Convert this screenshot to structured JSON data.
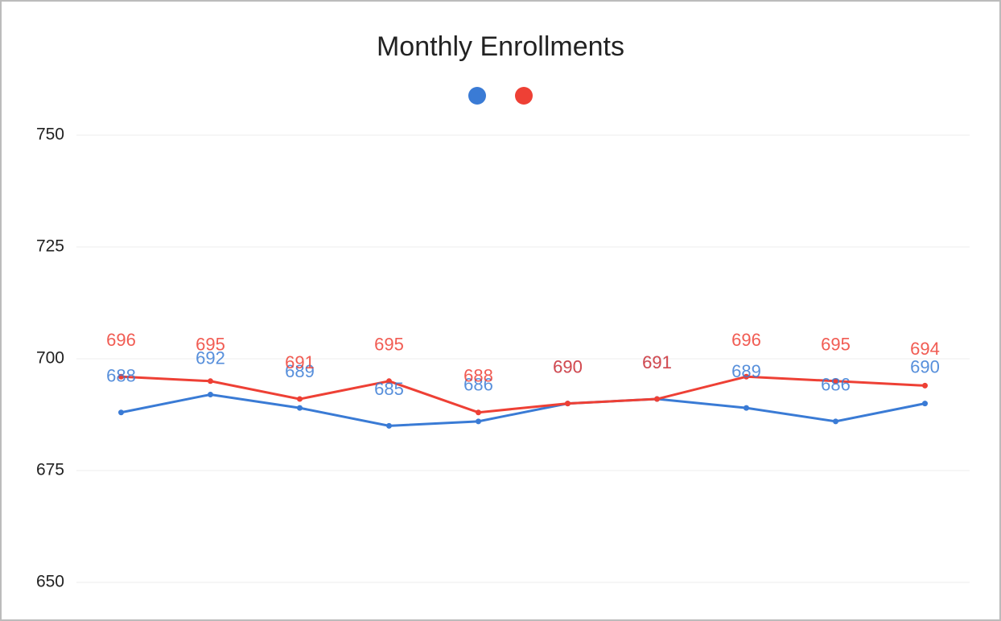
{
  "chart_data": {
    "type": "line",
    "title": "Monthly Enrollments",
    "categories": [
      null,
      null,
      null,
      null,
      null,
      null,
      null,
      null,
      null,
      null
    ],
    "series": [
      {
        "color": "#3a7bd5",
        "values": [
          688,
          692,
          689,
          685,
          686,
          690,
          691,
          689,
          686,
          690
        ]
      },
      {
        "color": "#ee4035",
        "values": [
          696,
          695,
          691,
          695,
          688,
          690,
          691,
          696,
          695,
          694
        ]
      }
    ],
    "ylim": [
      650,
      750
    ],
    "yticks": [
      650,
      675,
      700,
      725,
      750
    ],
    "grid": true,
    "legend": "top"
  }
}
